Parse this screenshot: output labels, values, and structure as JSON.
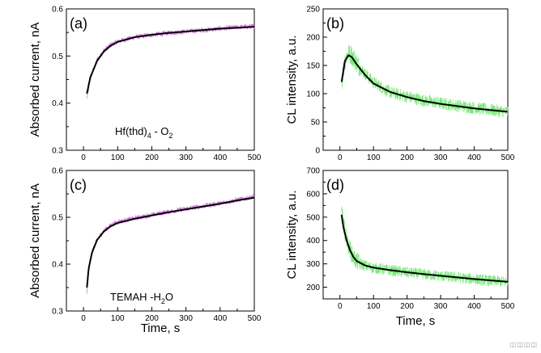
{
  "chart_data": [
    {
      "id": "a",
      "type": "line",
      "panel_label": "(a)",
      "annotation": {
        "main": "Hf(thd)",
        "sub": "4",
        "tail": " - O",
        "sub2": "2"
      },
      "ylabel": "Absorbed current, nA",
      "xlabel": "",
      "xlim": [
        -50,
        500
      ],
      "ylim": [
        0.3,
        0.6
      ],
      "xticks": [
        0,
        100,
        200,
        300,
        400,
        500
      ],
      "yticks": [
        0.3,
        0.4,
        0.5,
        0.6
      ],
      "series": [
        {
          "role": "raw",
          "color": "#d36fe0",
          "x": [
            10,
            20,
            40,
            60,
            80,
            100,
            150,
            200,
            250,
            300,
            350,
            400,
            450,
            500
          ],
          "y": [
            0.41,
            0.452,
            0.492,
            0.512,
            0.524,
            0.531,
            0.54,
            0.545,
            0.549,
            0.552,
            0.555,
            0.558,
            0.561,
            0.563
          ]
        },
        {
          "role": "fit",
          "color": "#000000",
          "x": [
            10,
            20,
            40,
            60,
            80,
            100,
            150,
            200,
            250,
            300,
            350,
            400,
            450,
            500
          ],
          "y": [
            0.42,
            0.455,
            0.49,
            0.51,
            0.522,
            0.53,
            0.54,
            0.545,
            0.549,
            0.552,
            0.555,
            0.558,
            0.56,
            0.562
          ]
        }
      ]
    },
    {
      "id": "b",
      "type": "line",
      "panel_label": "(b)",
      "ylabel": "CL intensity, a.u.",
      "xlabel": "",
      "xlim": [
        -50,
        500
      ],
      "ylim": [
        0,
        250
      ],
      "xticks": [
        0,
        100,
        200,
        300,
        400,
        500
      ],
      "yticks": [
        0,
        50,
        100,
        150,
        200,
        250
      ],
      "series": [
        {
          "role": "raw",
          "color": "#7ae87a",
          "x": [
            5,
            15,
            25,
            35,
            50,
            75,
            100,
            150,
            200,
            250,
            300,
            350,
            400,
            450,
            500
          ],
          "y": [
            120,
            160,
            172,
            168,
            155,
            135,
            120,
            102,
            95,
            88,
            83,
            79,
            75,
            71,
            68
          ]
        },
        {
          "role": "fit",
          "color": "#000000",
          "x": [
            5,
            15,
            25,
            35,
            50,
            75,
            100,
            150,
            200,
            250,
            300,
            350,
            400,
            450,
            500
          ],
          "y": [
            121,
            158,
            168,
            165,
            152,
            133,
            118,
            103,
            94,
            87,
            82,
            78,
            74,
            71,
            68
          ]
        }
      ]
    },
    {
      "id": "c",
      "type": "line",
      "panel_label": "(c)",
      "annotation": {
        "main": "TEMAH -H",
        "sub": "2",
        "tail": "O",
        "sub2": ""
      },
      "ylabel": "Absorbed current, nA",
      "xlabel": "Time, s",
      "xlim": [
        -50,
        500
      ],
      "ylim": [
        0.3,
        0.6
      ],
      "xticks": [
        0,
        100,
        200,
        300,
        400,
        500
      ],
      "yticks": [
        0.3,
        0.4,
        0.5,
        0.6
      ],
      "series": [
        {
          "role": "raw",
          "color": "#d36fe0",
          "x": [
            10,
            15,
            25,
            40,
            60,
            80,
            100,
            150,
            200,
            250,
            300,
            350,
            400,
            450,
            500
          ],
          "y": [
            0.34,
            0.39,
            0.425,
            0.452,
            0.472,
            0.483,
            0.49,
            0.498,
            0.505,
            0.512,
            0.518,
            0.524,
            0.53,
            0.537,
            0.544
          ]
        },
        {
          "role": "fit",
          "color": "#000000",
          "x": [
            10,
            15,
            25,
            40,
            60,
            80,
            100,
            150,
            200,
            250,
            300,
            350,
            400,
            450,
            500
          ],
          "y": [
            0.35,
            0.39,
            0.425,
            0.452,
            0.47,
            0.481,
            0.488,
            0.497,
            0.504,
            0.511,
            0.517,
            0.523,
            0.529,
            0.536,
            0.542
          ]
        }
      ]
    },
    {
      "id": "d",
      "type": "line",
      "panel_label": "(d)",
      "ylabel": "CL intensity, a.u.",
      "xlabel": "Time, s",
      "xlim": [
        -50,
        500
      ],
      "ylim": [
        150,
        700
      ],
      "xticks": [
        0,
        100,
        200,
        300,
        400,
        500
      ],
      "yticks": [
        200,
        300,
        400,
        500,
        600,
        700
      ],
      "series": [
        {
          "role": "raw",
          "color": "#7ae87a",
          "x": [
            5,
            10,
            20,
            30,
            40,
            50,
            75,
            100,
            150,
            200,
            250,
            300,
            350,
            400,
            450,
            500
          ],
          "y": [
            540,
            470,
            405,
            360,
            330,
            310,
            292,
            283,
            272,
            263,
            255,
            248,
            241,
            234,
            228,
            222
          ]
        },
        {
          "role": "fit",
          "color": "#000000",
          "x": [
            5,
            10,
            20,
            30,
            40,
            50,
            75,
            100,
            150,
            200,
            250,
            300,
            350,
            400,
            450,
            500
          ],
          "y": [
            510,
            460,
            400,
            358,
            330,
            312,
            293,
            284,
            273,
            264,
            256,
            249,
            242,
            235,
            229,
            223
          ]
        }
      ]
    }
  ],
  "corner_icons": "◫◫◫◫"
}
